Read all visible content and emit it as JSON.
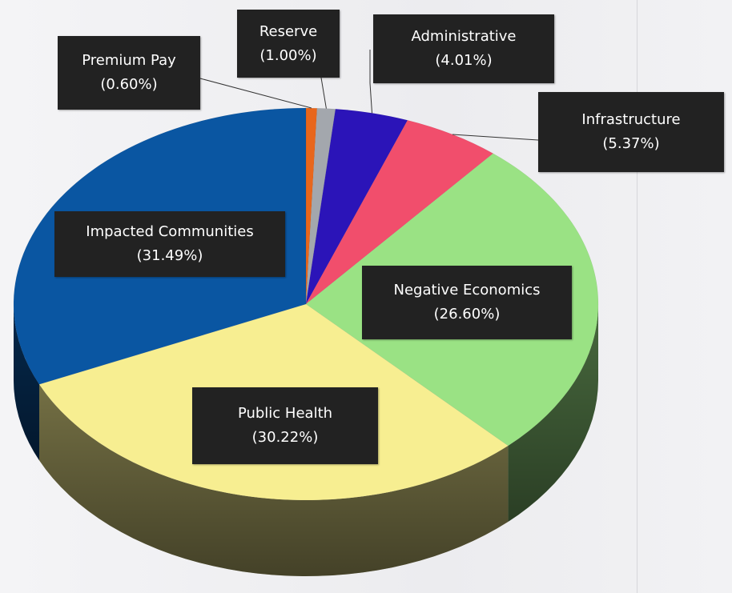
{
  "chart_data": {
    "type": "pie",
    "title": "",
    "slices": [
      {
        "label": "Premium Pay",
        "value": 0.6,
        "value_label": "(0.60%)",
        "color": "#e8661c"
      },
      {
        "label": "Reserve",
        "value": 1.0,
        "value_label": "(1.00%)",
        "color": "#a3a7ad"
      },
      {
        "label": "Administrative",
        "value": 4.01,
        "value_label": "(4.01%)",
        "color": "#2b14b8"
      },
      {
        "label": "Infrastructure",
        "value": 5.37,
        "value_label": "(5.37%)",
        "color": "#f14e6c"
      },
      {
        "label": "Negative Economics",
        "value": 26.6,
        "value_label": "(26.60%)",
        "color": "#9ae284"
      },
      {
        "label": "Public Health",
        "value": 30.22,
        "value_label": "(30.22%)",
        "color": "#f7ee91"
      },
      {
        "label": "Impacted Communities",
        "value": 31.49,
        "value_label": "(31.49%)",
        "color": "#0a56a2"
      }
    ],
    "legend": "callout labels",
    "style": "3d-pie"
  }
}
